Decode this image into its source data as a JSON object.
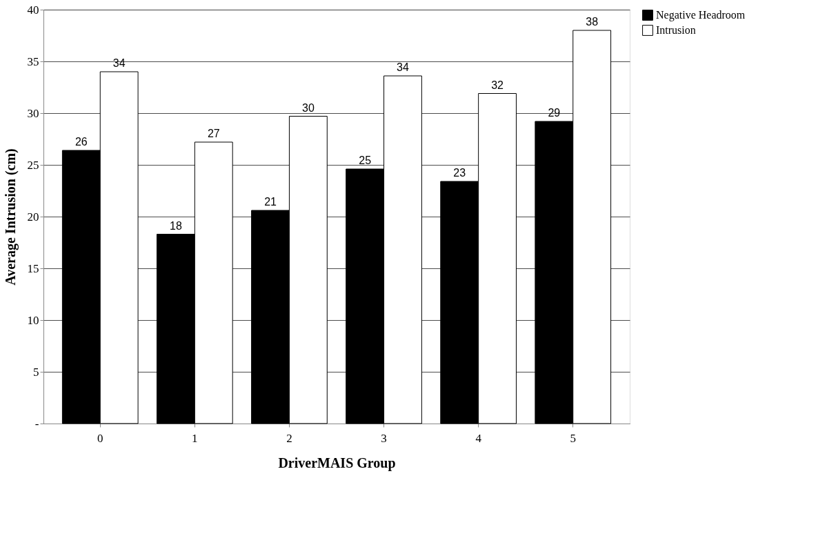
{
  "chart_data": {
    "type": "bar",
    "xlabel": "DriverMAIS Group",
    "ylabel": "Average Intrusion (cm)",
    "categories": [
      "0",
      "1",
      "2",
      "3",
      "4",
      "5"
    ],
    "series": [
      {
        "name": "Negative Headroom",
        "color": "#000000",
        "values": [
          26.4,
          18.3,
          20.6,
          24.6,
          23.4,
          29.2
        ],
        "value_labels": [
          "26",
          "18",
          "21",
          "25",
          "23",
          "29"
        ]
      },
      {
        "name": "Intrusion",
        "color": "#ffffff",
        "values": [
          34.0,
          27.2,
          29.7,
          33.6,
          31.9,
          38.0
        ],
        "value_labels": [
          "34",
          "27",
          "30",
          "34",
          "32",
          "38"
        ]
      }
    ],
    "ylim": [
      0,
      40
    ],
    "yticks": [
      {
        "value": 0,
        "label": "-"
      },
      5,
      10,
      15,
      20,
      25,
      30,
      35,
      40
    ],
    "grid": "y",
    "legend": "right"
  }
}
